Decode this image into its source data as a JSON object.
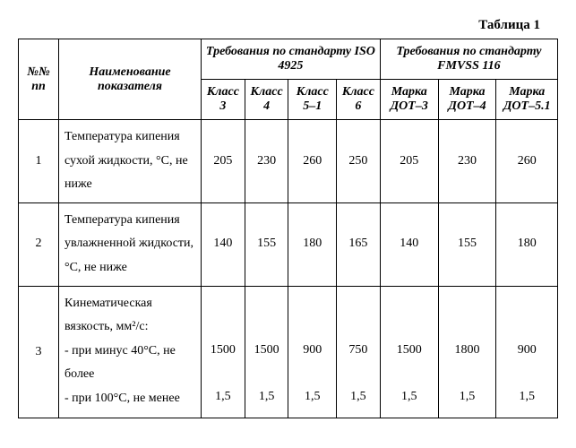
{
  "caption": "Таблица 1",
  "headers": {
    "num": "№№ пп",
    "name": "Наименование показателя",
    "group_iso": "Требования по стандарту ISO 4925",
    "group_fmvss": "Требования по стандарту FMVSS 116",
    "iso": [
      "Класс 3",
      "Класс 4",
      "Класс 5–1",
      "Класс 6"
    ],
    "fmvss": [
      "Марка ДОТ–3",
      "Марка ДОТ–4",
      "Марка ДОТ–5.1"
    ]
  },
  "rows": [
    {
      "num": "1",
      "name": "Температура кипения сухой жидкости, °C, не ниже",
      "vals": [
        "205",
        "230",
        "260",
        "250",
        "205",
        "230",
        "260"
      ]
    },
    {
      "num": "2",
      "name": "Температура кипения увлажненной жидкости, °C, не ниже",
      "vals": [
        "140",
        "155",
        "180",
        "165",
        "140",
        "155",
        "180"
      ]
    },
    {
      "num": "3",
      "name": "Кинематическая вязкость, мм²/с:\n- при минус 40°C, не более\n- при 100°C, не менее",
      "vals_a": [
        "1500",
        "1500",
        "900",
        "750",
        "1500",
        "1800",
        "900"
      ],
      "vals_b": [
        "1,5",
        "1,5",
        "1,5",
        "1,5",
        "1,5",
        "1,5",
        "1,5"
      ]
    }
  ]
}
